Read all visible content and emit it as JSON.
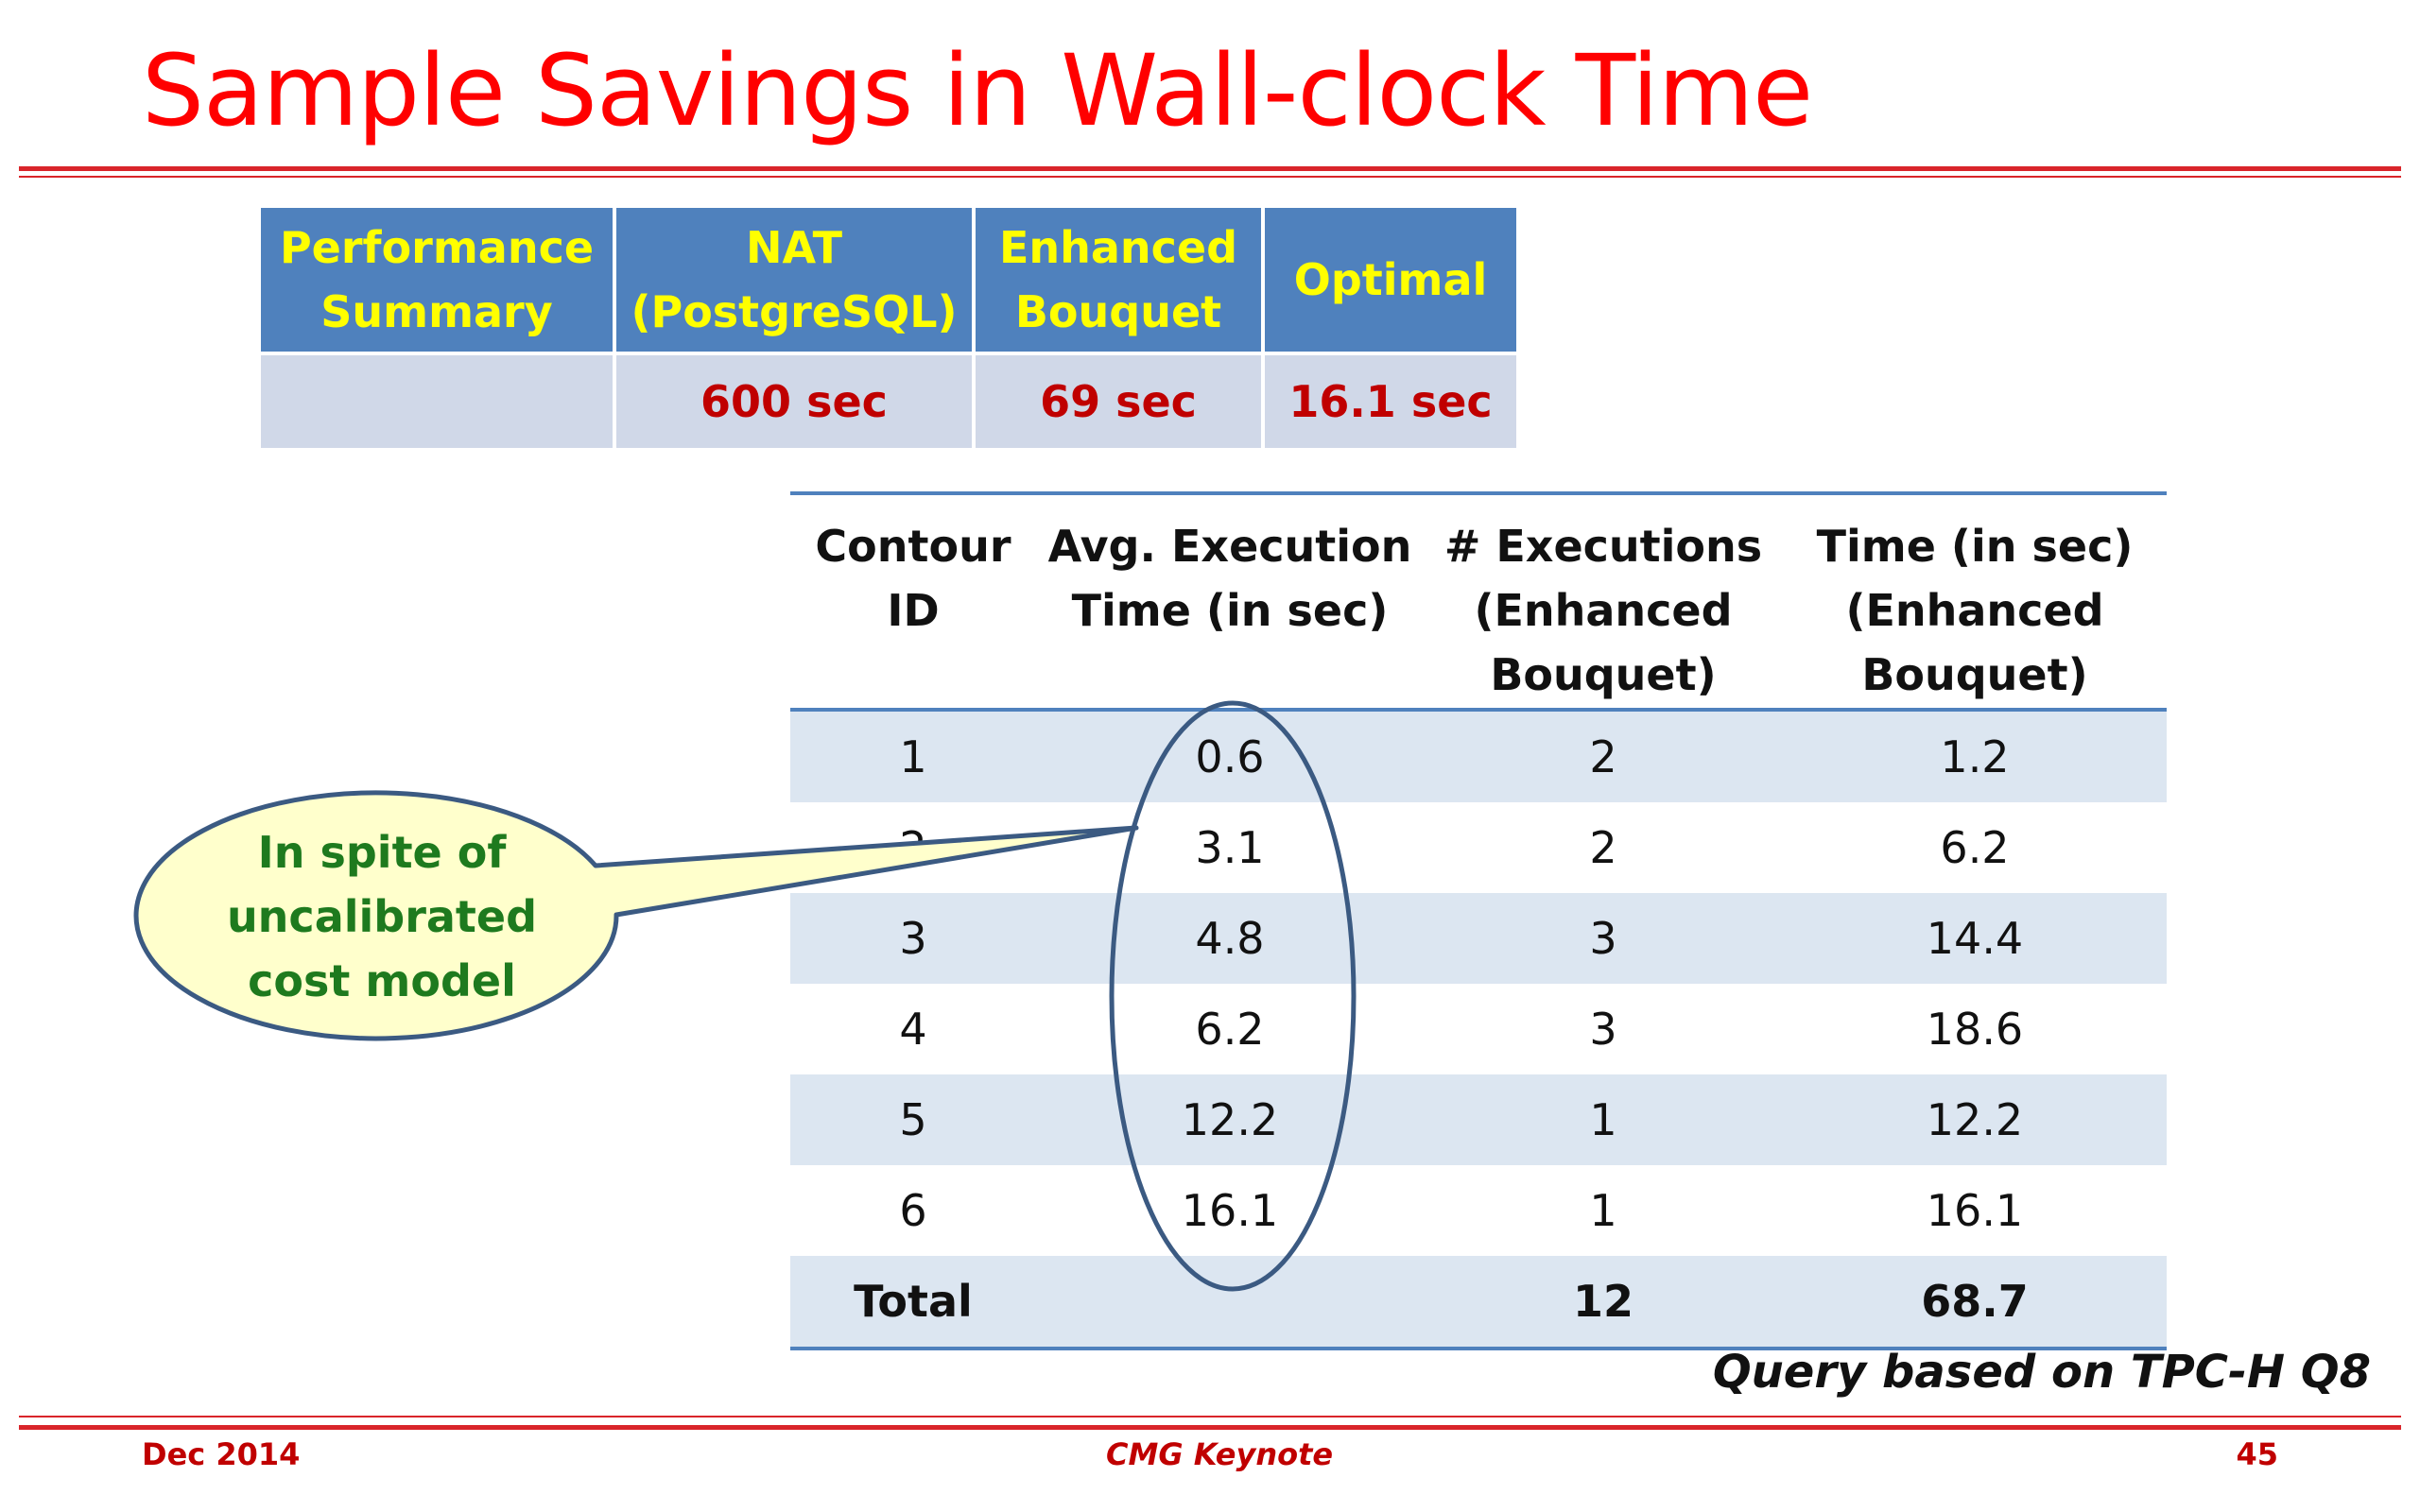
{
  "slide": {
    "title": "Sample Savings in Wall-clock Time"
  },
  "summary_table": {
    "headers": [
      "Performance Summary",
      "NAT (PostgreSQL)",
      "Enhanced Bouquet",
      "Optimal"
    ],
    "values": [
      "",
      "600 sec",
      "69 sec",
      "16.1 sec"
    ]
  },
  "detail_table": {
    "headers": [
      "Contour ID",
      "Avg. Execution Time (in sec)",
      "# Executions (Enhanced Bouquet)",
      "Time (in sec) (Enhanced Bouquet)"
    ],
    "rows": [
      [
        "1",
        "0.6",
        "2",
        "1.2"
      ],
      [
        "2",
        "3.1",
        "2",
        "6.2"
      ],
      [
        "3",
        "4.8",
        "3",
        "14.4"
      ],
      [
        "4",
        "6.2",
        "3",
        "18.6"
      ],
      [
        "5",
        "12.2",
        "1",
        "12.2"
      ],
      [
        "6",
        "16.1",
        "1",
        "16.1"
      ]
    ],
    "total": [
      "Total",
      "",
      "12",
      "68.7"
    ]
  },
  "callout": {
    "text": "In spite of uncalibrated cost model"
  },
  "note": "Query based on TPC-H Q8",
  "footer": {
    "date": "Dec 2014",
    "event": "CMG Keynote",
    "page": "45"
  },
  "colors": {
    "title": "#ff0000",
    "header_fill": "#4f81bd",
    "header_text": "#ffff00",
    "summary_value_text": "#c00000",
    "band_fill": "#dce6f1",
    "callout_fill": "#ffffcc",
    "callout_text": "#1e7a1e",
    "ellipse_stroke": "#3b5a82"
  }
}
